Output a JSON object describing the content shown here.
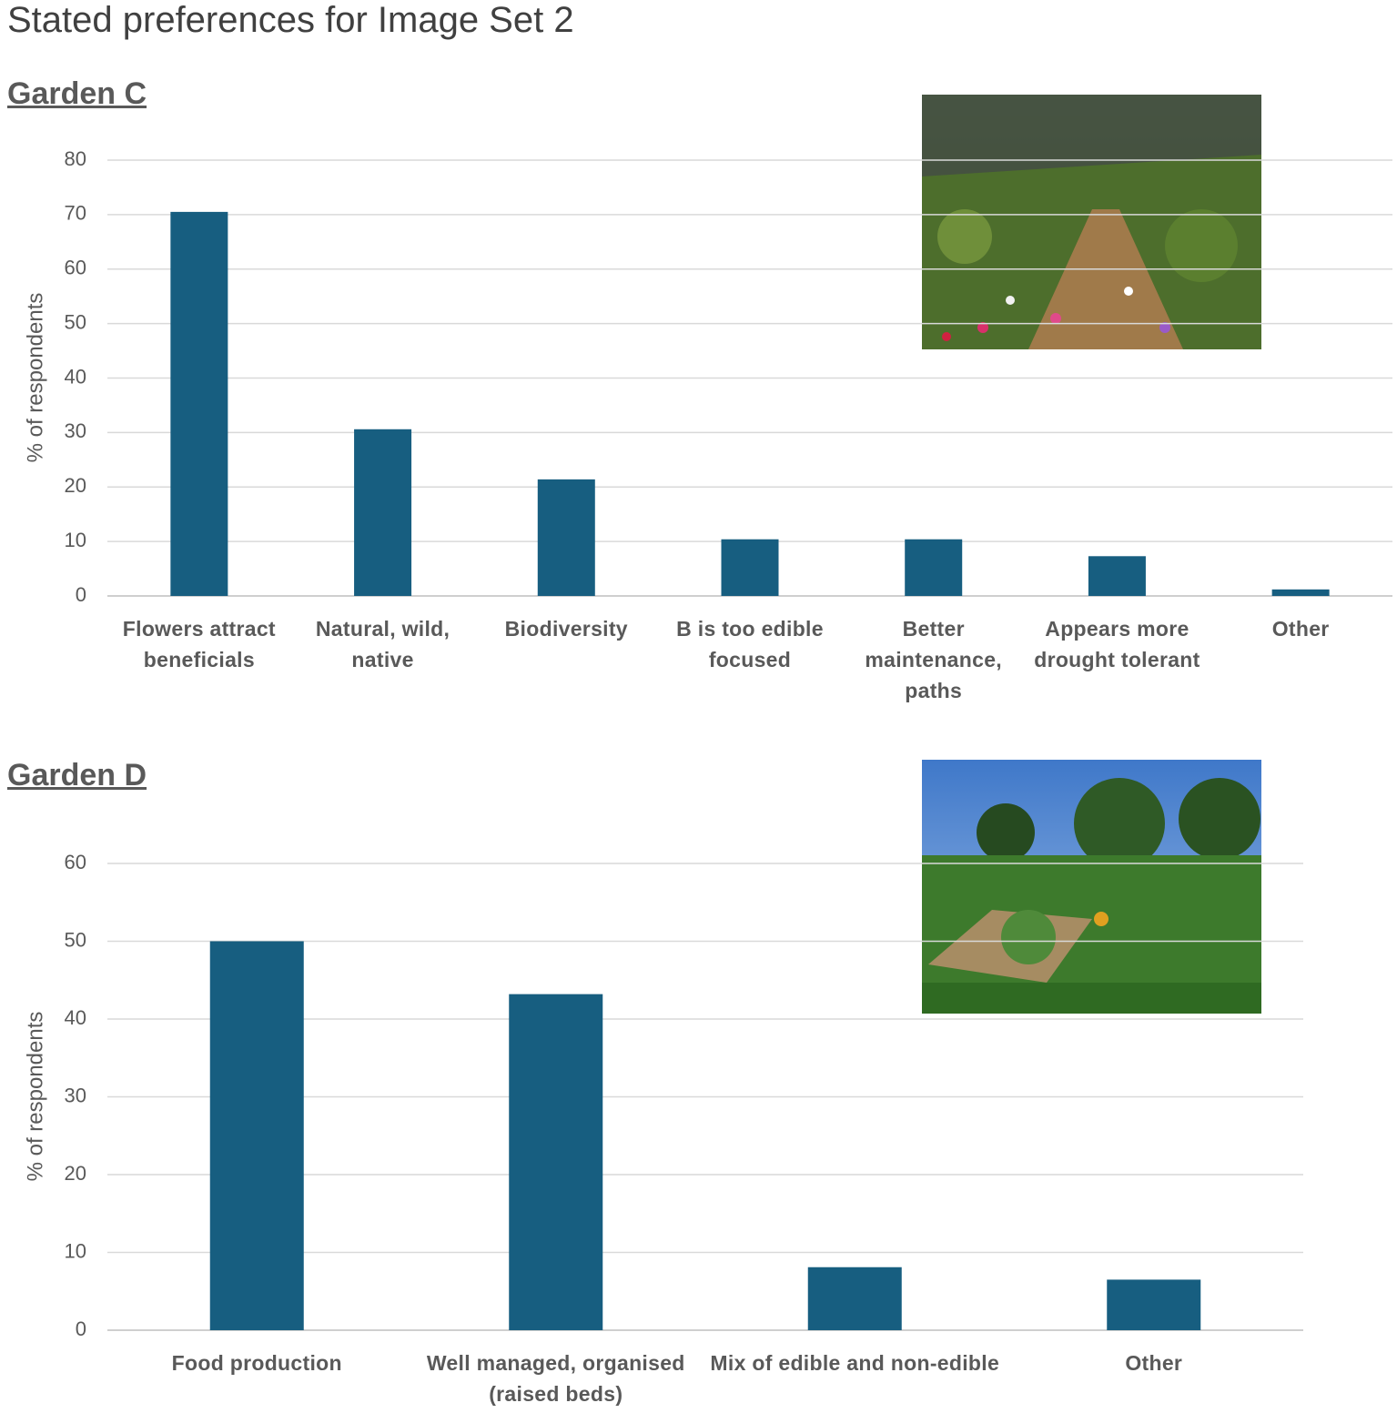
{
  "title": "Stated preferences for Image Set 2",
  "chart_data": [
    {
      "type": "bar",
      "title": "Garden C",
      "y_label": "% of respondents",
      "categories": [
        "Flowers attract beneficials",
        "Natural, wild, native",
        "Biodiversity",
        "B is too edible focused",
        "Better maintenance, paths",
        "Appears more drought tolerant",
        "Other"
      ],
      "values": [
        70.5,
        30.6,
        21.4,
        10.4,
        10.4,
        7.3,
        1.2
      ],
      "color": "#175e80",
      "ylim": [
        0,
        80
      ],
      "yticks": [
        0,
        10,
        20,
        30,
        40,
        50,
        60,
        70,
        80
      ],
      "grid": true
    },
    {
      "type": "bar",
      "title": "Garden D",
      "y_label": "% of respondents",
      "categories": [
        "Food production",
        "Well managed, organised (raised beds)",
        "Mix of edible and non-edible",
        "Other"
      ],
      "values": [
        50,
        43.2,
        8.1,
        6.5
      ],
      "color": "#175e80",
      "ylim": [
        0,
        60
      ],
      "yticks": [
        0,
        10,
        20,
        30,
        40,
        50,
        60
      ],
      "grid": true
    }
  ]
}
